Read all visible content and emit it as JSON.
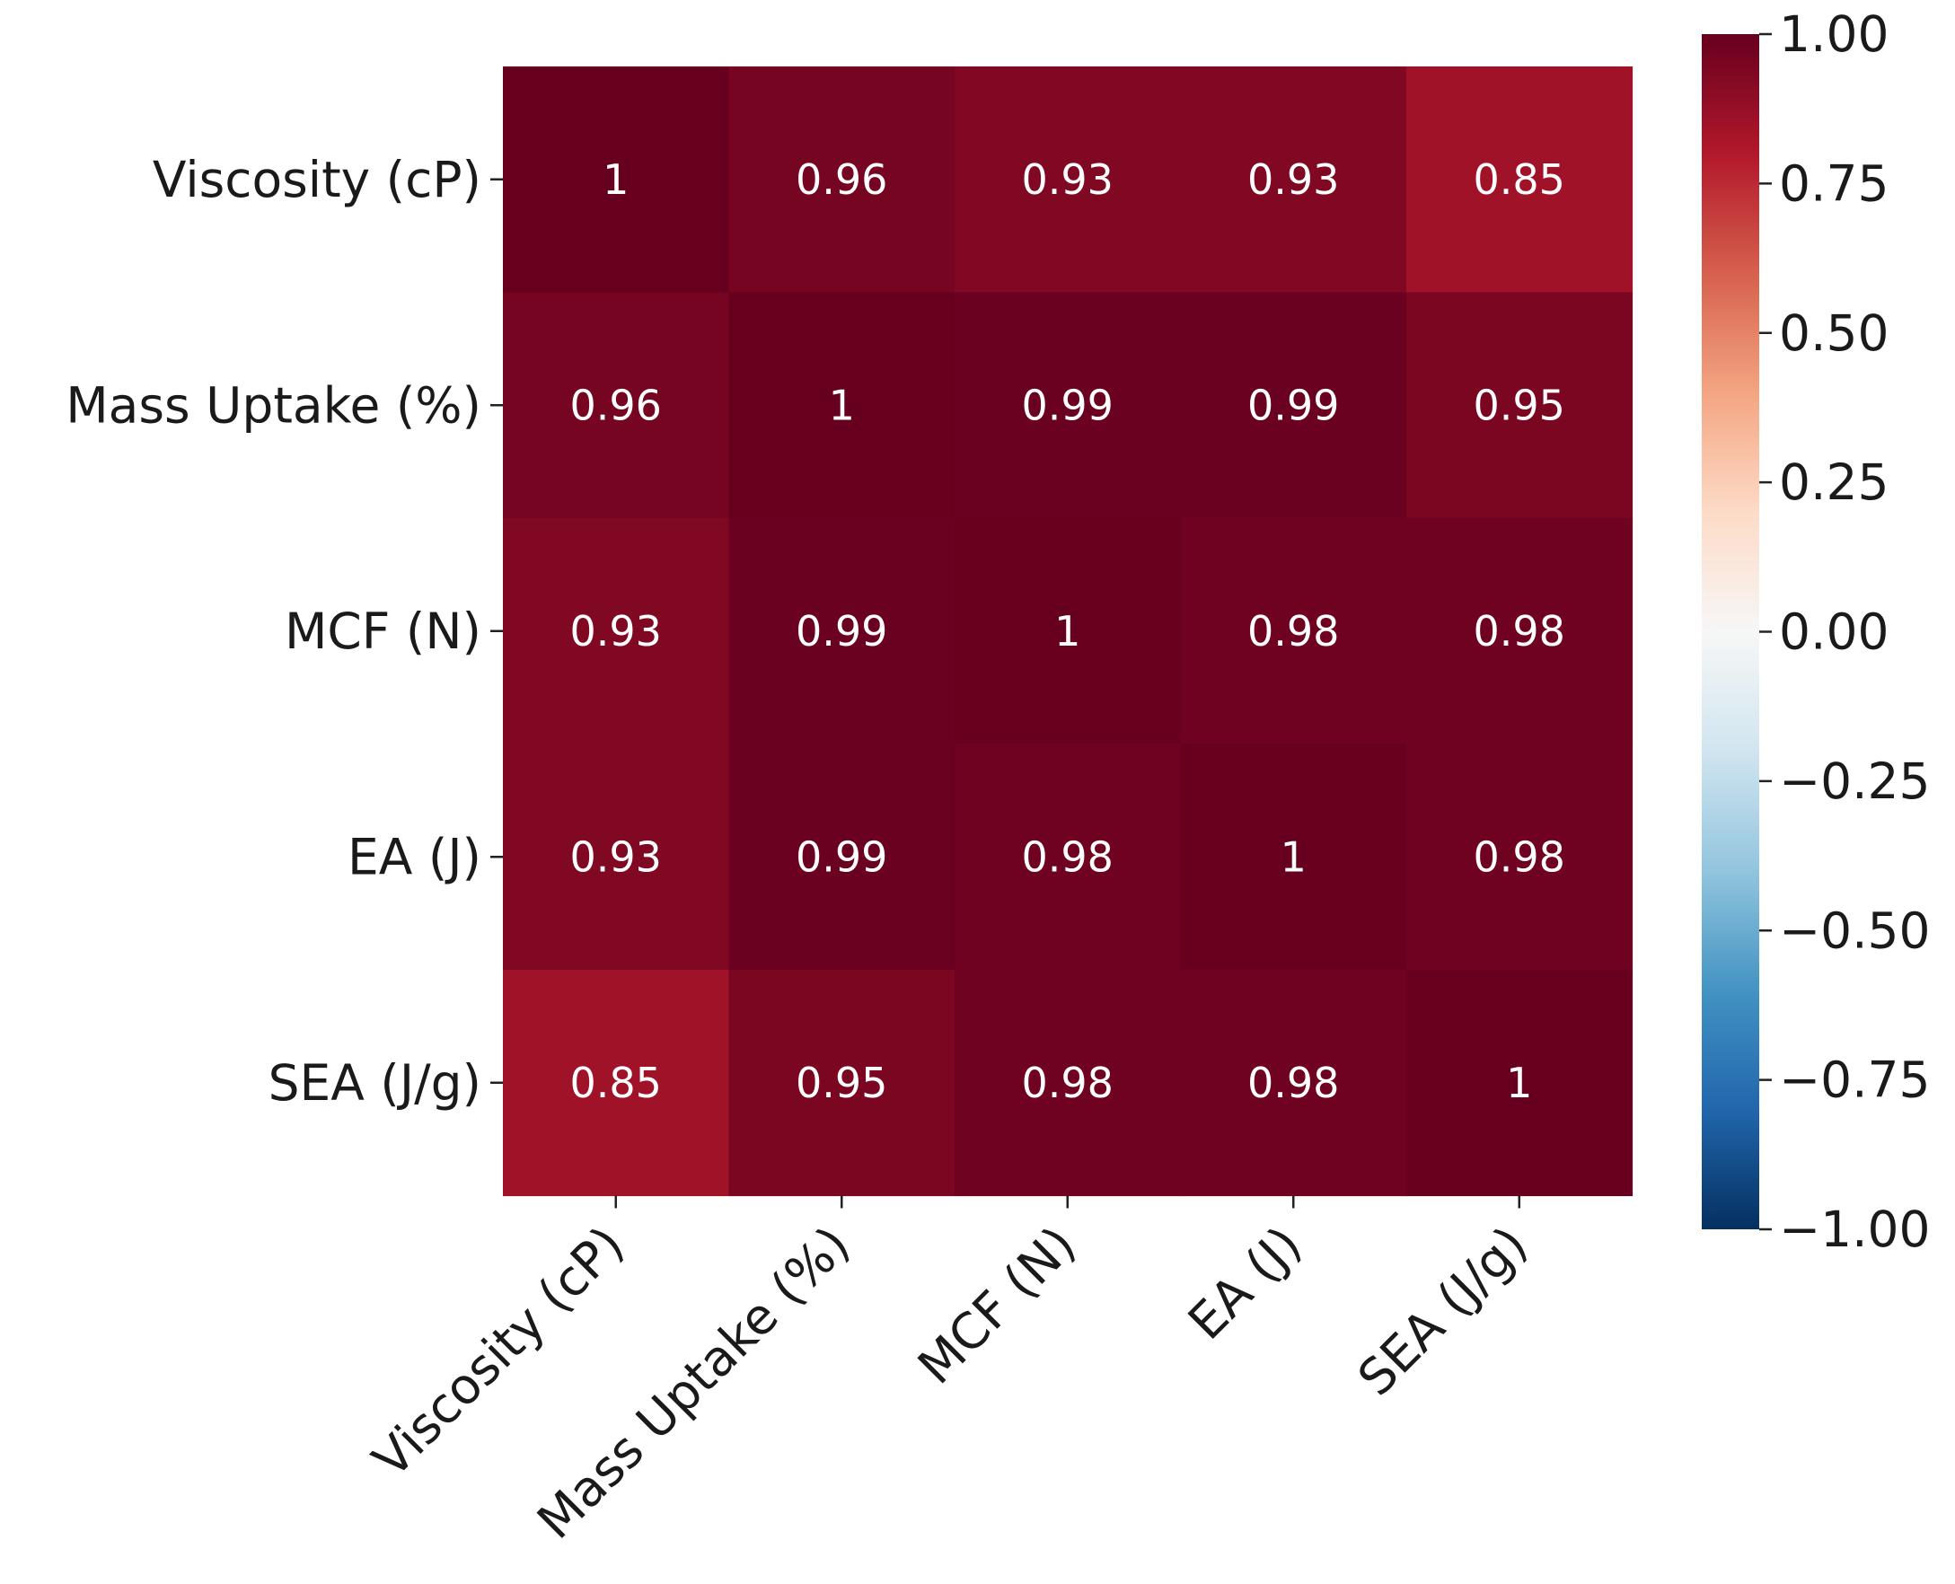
{
  "chart_data": {
    "type": "heatmap",
    "title": "",
    "xlabel": "",
    "ylabel": "",
    "row_labels": [
      "Viscosity (cP)",
      "Mass Uptake (%)",
      "MCF (N)",
      "EA (J)",
      "SEA (J/g)"
    ],
    "col_labels": [
      "Viscosity (cP)",
      "Mass Uptake (%)",
      "MCF (N)",
      "EA (J)",
      "SEA (J/g)"
    ],
    "values": [
      [
        1,
        0.96,
        0.93,
        0.93,
        0.85
      ],
      [
        0.96,
        1,
        0.99,
        0.99,
        0.95
      ],
      [
        0.93,
        0.99,
        1,
        0.98,
        0.98
      ],
      [
        0.93,
        0.99,
        0.98,
        1,
        0.98
      ],
      [
        0.85,
        0.95,
        0.98,
        0.98,
        1
      ]
    ],
    "annotations": [
      [
        "1",
        "0.96",
        "0.93",
        "0.93",
        "0.85"
      ],
      [
        "0.96",
        "1",
        "0.99",
        "0.99",
        "0.95"
      ],
      [
        "0.93",
        "0.99",
        "1",
        "0.98",
        "0.98"
      ],
      [
        "0.93",
        "0.99",
        "0.98",
        "1",
        "0.98"
      ],
      [
        "0.85",
        "0.95",
        "0.98",
        "0.98",
        "1"
      ]
    ],
    "colormap": "RdBu_r",
    "vmin": -1.0,
    "vmax": 1.0,
    "colorbar_ticks": [
      1.0,
      0.75,
      0.5,
      0.25,
      0.0,
      -0.25,
      -0.5,
      -0.75,
      -1.0
    ],
    "colorbar_tick_labels": [
      "1.00",
      "0.75",
      "0.50",
      "0.25",
      "0.00",
      "−0.25",
      "−0.50",
      "−0.75",
      "−1.00"
    ],
    "colorbar_position": "right"
  }
}
